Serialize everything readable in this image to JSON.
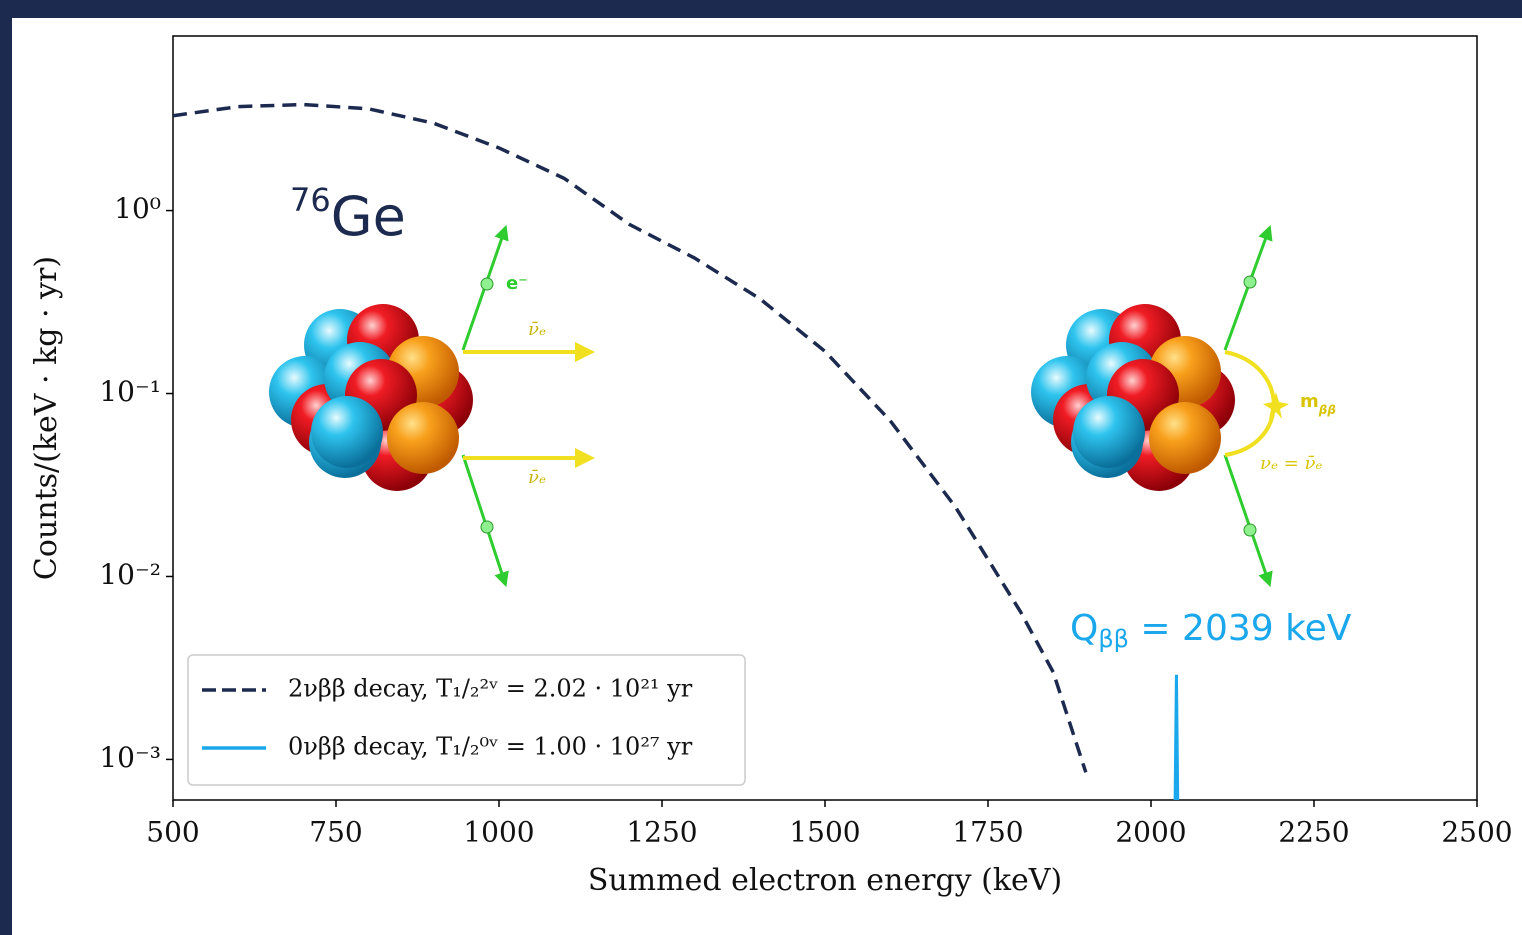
{
  "chart_data": {
    "type": "line",
    "x_label": "Summed electron energy (keV)",
    "y_label": "Counts/(keV · kg · yr)",
    "xlim": [
      500,
      2500
    ],
    "xticks": [
      500,
      750,
      1000,
      1250,
      1500,
      1750,
      2000,
      2250,
      2500
    ],
    "ylim": [
      0.0006,
      9
    ],
    "y_scale": "log",
    "yticks": [
      {
        "value": 1,
        "label": "10⁰"
      },
      {
        "value": 0.1,
        "label": "10⁻¹"
      },
      {
        "value": 0.01,
        "label": "10⁻²"
      },
      {
        "value": 0.001,
        "label": "10⁻³"
      }
    ],
    "legend": "lower left",
    "series": [
      {
        "name": "2νββ decay, T₁/₂²ᵛ = 2.02 · 10²¹ yr",
        "color": "#1b2a4e",
        "dash": true,
        "x": [
          500,
          600,
          700,
          800,
          900,
          1000,
          1100,
          1200,
          1300,
          1400,
          1500,
          1600,
          1700,
          1800,
          1850,
          1900
        ],
        "values": [
          3.3,
          3.7,
          3.8,
          3.6,
          3.0,
          2.2,
          1.5,
          0.84,
          0.55,
          0.33,
          0.17,
          0.071,
          0.024,
          0.0064,
          0.003,
          0.00085
        ]
      },
      {
        "name": "0νββ decay, T₁/₂⁰ᵛ = 1.00 · 10²⁷ yr",
        "color": "#1aa7ec",
        "dash": false,
        "x": [
          2037,
          2039,
          2041
        ],
        "values": [
          0.0006,
          0.0029,
          0.0006
        ]
      }
    ],
    "isotope": {
      "mass": "76",
      "symbol": "Ge"
    },
    "q_label": {
      "main": "Q",
      "sub": "ββ",
      "rest": " = 2039 keV"
    },
    "diagram_labels": [
      "e⁻",
      "ν̄ₑ",
      "ν̄ₑ",
      "m",
      "ββ",
      "νₑ = ν̄ₑ"
    ]
  }
}
